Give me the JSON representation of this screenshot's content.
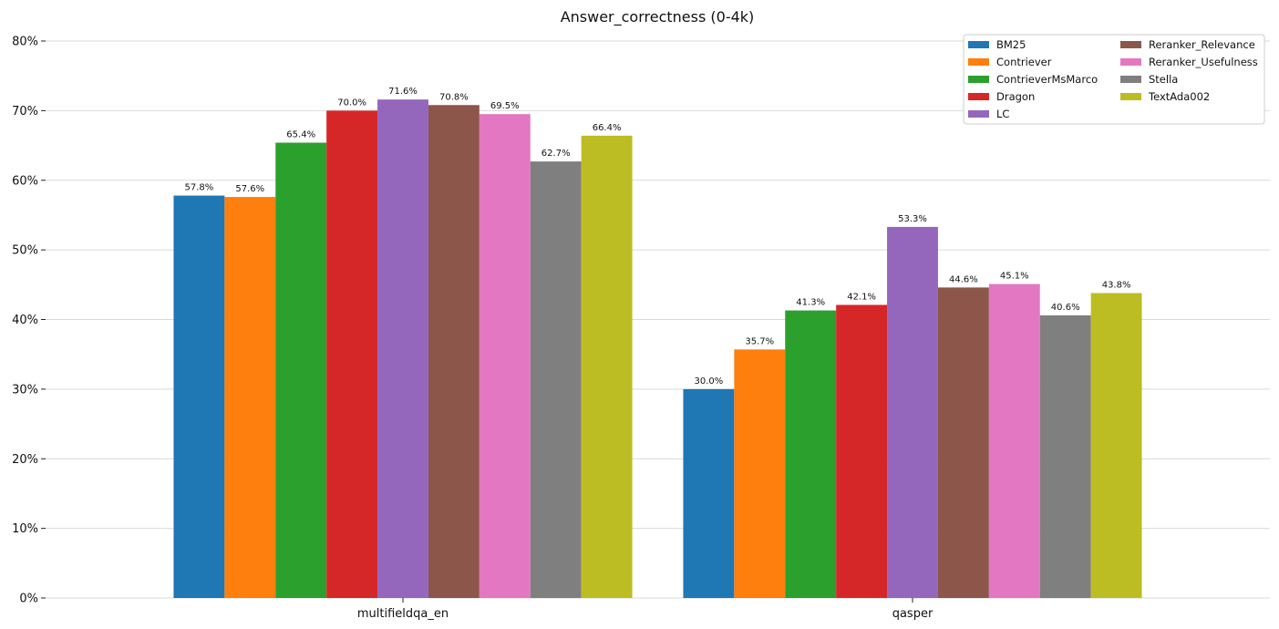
{
  "chart_data": {
    "type": "bar",
    "title": "Answer_correctness (0-4k)",
    "categories": [
      "multifieldqa_en",
      "qasper"
    ],
    "ylim": [
      0,
      80
    ],
    "yticks": [
      "0%",
      "10%",
      "20%",
      "30%",
      "40%",
      "50%",
      "60%",
      "70%",
      "80%"
    ],
    "grid": true,
    "legend": {
      "placement": "top-right",
      "columns": 2
    },
    "series": [
      {
        "name": "BM25",
        "color": "#1f77b4",
        "values": [
          57.8,
          30.0
        ],
        "labels": [
          "57.8%",
          "30.0%"
        ]
      },
      {
        "name": "Contriever",
        "color": "#ff7f0e",
        "values": [
          57.6,
          35.7
        ],
        "labels": [
          "57.6%",
          "35.7%"
        ]
      },
      {
        "name": "ContrieverMsMarco",
        "color": "#2ca02c",
        "values": [
          65.4,
          41.3
        ],
        "labels": [
          "65.4%",
          "41.3%"
        ]
      },
      {
        "name": "Dragon",
        "color": "#d62728",
        "values": [
          70.0,
          42.1
        ],
        "labels": [
          "70.0%",
          "42.1%"
        ]
      },
      {
        "name": "LC",
        "color": "#9467bd",
        "values": [
          71.6,
          53.3
        ],
        "labels": [
          "71.6%",
          "53.3%"
        ]
      },
      {
        "name": "Reranker_Relevance",
        "color": "#8c564b",
        "values": [
          70.8,
          44.6
        ],
        "labels": [
          "70.8%",
          "44.6%"
        ]
      },
      {
        "name": "Reranker_Usefulness",
        "color": "#e377c2",
        "values": [
          69.5,
          45.1
        ],
        "labels": [
          "69.5%",
          "45.1%"
        ]
      },
      {
        "name": "Stella",
        "color": "#7f7f7f",
        "values": [
          62.7,
          40.6
        ],
        "labels": [
          "62.7%",
          "40.6%"
        ]
      },
      {
        "name": "TextAda002",
        "color": "#bcbd22",
        "values": [
          66.4,
          43.8
        ],
        "labels": [
          "66.4%",
          "43.8%"
        ]
      }
    ]
  }
}
